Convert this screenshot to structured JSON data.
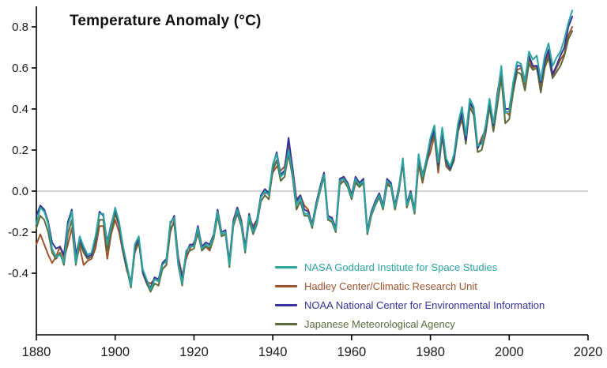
{
  "chart_data": {
    "type": "line",
    "title": "Temperature Anomaly (°C)",
    "xlabel": "",
    "ylabel": "",
    "xlim": [
      1880,
      2020
    ],
    "ylim": [
      -0.7,
      0.9
    ],
    "x_ticks": [
      1880,
      1900,
      1920,
      1940,
      1960,
      1980,
      2000,
      2020
    ],
    "y_ticks": [
      0.8,
      0.6,
      0.4,
      0.2,
      0.0,
      -0.2,
      -0.4
    ],
    "grid": false,
    "axis_color": "#000000",
    "zero_line": {
      "value": 0.0,
      "color": "#b8b8b8"
    },
    "legend_position": "inside-lower-right",
    "x": {
      "start": 1880,
      "step": 1,
      "end": 2016
    },
    "series": [
      {
        "id": "nasa-giss",
        "name": "NASA Goddard Institute for Space Studies",
        "color": "#2aa5a0",
        "values": [
          -0.16,
          -0.08,
          -0.1,
          -0.16,
          -0.28,
          -0.32,
          -0.31,
          -0.35,
          -0.17,
          -0.1,
          -0.35,
          -0.22,
          -0.27,
          -0.31,
          -0.3,
          -0.22,
          -0.11,
          -0.11,
          -0.26,
          -0.17,
          -0.08,
          -0.15,
          -0.27,
          -0.36,
          -0.46,
          -0.26,
          -0.22,
          -0.38,
          -0.43,
          -0.48,
          -0.43,
          -0.44,
          -0.36,
          -0.34,
          -0.15,
          -0.13,
          -0.35,
          -0.45,
          -0.29,
          -0.27,
          -0.27,
          -0.18,
          -0.28,
          -0.26,
          -0.27,
          -0.22,
          -0.1,
          -0.21,
          -0.2,
          -0.36,
          -0.16,
          -0.09,
          -0.16,
          -0.29,
          -0.12,
          -0.2,
          -0.15,
          -0.03,
          0.0,
          -0.02,
          0.13,
          0.18,
          0.07,
          0.09,
          0.2,
          0.09,
          -0.07,
          -0.03,
          -0.11,
          -0.11,
          -0.17,
          -0.07,
          0.01,
          0.08,
          -0.13,
          -0.14,
          -0.19,
          0.05,
          0.06,
          0.03,
          -0.03,
          0.06,
          0.03,
          0.05,
          -0.2,
          -0.11,
          -0.06,
          -0.02,
          -0.08,
          0.05,
          0.03,
          -0.08,
          0.01,
          0.16,
          -0.07,
          -0.01,
          -0.1,
          0.18,
          0.07,
          0.16,
          0.26,
          0.32,
          0.14,
          0.31,
          0.16,
          0.12,
          0.18,
          0.33,
          0.41,
          0.27,
          0.45,
          0.41,
          0.22,
          0.23,
          0.32,
          0.45,
          0.33,
          0.46,
          0.61,
          0.38,
          0.39,
          0.53,
          0.63,
          0.62,
          0.53,
          0.68,
          0.64,
          0.66,
          0.54,
          0.66,
          0.72,
          0.61,
          0.65,
          0.68,
          0.74,
          0.82,
          0.88
        ]
      },
      {
        "id": "hadley-cru",
        "name": "Hadley Center/Climatic Research Unit",
        "color": "#a0522d",
        "values": [
          -0.26,
          -0.21,
          -0.26,
          -0.31,
          -0.35,
          -0.32,
          -0.27,
          -0.33,
          -0.26,
          -0.18,
          -0.35,
          -0.27,
          -0.36,
          -0.34,
          -0.33,
          -0.28,
          -0.17,
          -0.17,
          -0.33,
          -0.21,
          -0.14,
          -0.2,
          -0.3,
          -0.39,
          -0.44,
          -0.3,
          -0.25,
          -0.39,
          -0.44,
          -0.45,
          -0.43,
          -0.44,
          -0.38,
          -0.36,
          -0.2,
          -0.14,
          -0.32,
          -0.41,
          -0.33,
          -0.28,
          -0.25,
          -0.21,
          -0.28,
          -0.27,
          -0.29,
          -0.23,
          -0.11,
          -0.22,
          -0.21,
          -0.34,
          -0.14,
          -0.08,
          -0.14,
          -0.27,
          -0.13,
          -0.17,
          -0.14,
          -0.02,
          -0.01,
          -0.01,
          0.09,
          0.12,
          0.1,
          0.12,
          0.23,
          0.12,
          -0.04,
          -0.02,
          -0.07,
          -0.09,
          -0.17,
          -0.06,
          0.02,
          0.09,
          -0.12,
          -0.13,
          -0.19,
          0.04,
          0.07,
          0.03,
          -0.02,
          0.05,
          0.02,
          0.06,
          -0.21,
          -0.12,
          -0.05,
          -0.02,
          -0.07,
          0.04,
          0.02,
          -0.09,
          0.0,
          0.14,
          -0.08,
          -0.02,
          -0.11,
          0.13,
          0.04,
          0.14,
          0.19,
          0.27,
          0.09,
          0.27,
          0.12,
          0.1,
          0.16,
          0.29,
          0.35,
          0.24,
          0.43,
          0.39,
          0.21,
          0.26,
          0.3,
          0.43,
          0.32,
          0.48,
          0.58,
          0.39,
          0.37,
          0.49,
          0.59,
          0.6,
          0.52,
          0.64,
          0.6,
          0.61,
          0.5,
          0.62,
          0.67,
          0.56,
          0.6,
          0.64,
          0.67,
          0.76,
          0.8
        ]
      },
      {
        "id": "noaa-ncei",
        "name": "NOAA National Center for Environmental Information",
        "color": "#333399",
        "values": [
          -0.12,
          -0.07,
          -0.09,
          -0.15,
          -0.25,
          -0.28,
          -0.27,
          -0.31,
          -0.15,
          -0.09,
          -0.31,
          -0.23,
          -0.28,
          -0.32,
          -0.31,
          -0.23,
          -0.1,
          -0.12,
          -0.25,
          -0.16,
          -0.09,
          -0.16,
          -0.28,
          -0.37,
          -0.45,
          -0.27,
          -0.23,
          -0.39,
          -0.44,
          -0.47,
          -0.42,
          -0.43,
          -0.35,
          -0.33,
          -0.16,
          -0.12,
          -0.33,
          -0.43,
          -0.3,
          -0.26,
          -0.26,
          -0.17,
          -0.27,
          -0.25,
          -0.26,
          -0.21,
          -0.09,
          -0.2,
          -0.19,
          -0.35,
          -0.15,
          -0.08,
          -0.15,
          -0.28,
          -0.11,
          -0.19,
          -0.14,
          -0.02,
          0.01,
          -0.01,
          0.12,
          0.19,
          0.08,
          0.1,
          0.26,
          0.11,
          -0.05,
          -0.02,
          -0.09,
          -0.1,
          -0.16,
          -0.06,
          0.02,
          0.09,
          -0.12,
          -0.13,
          -0.18,
          0.06,
          0.07,
          0.04,
          -0.02,
          0.07,
          0.04,
          0.06,
          -0.19,
          -0.1,
          -0.05,
          -0.01,
          -0.07,
          0.06,
          0.04,
          -0.07,
          0.02,
          0.15,
          -0.06,
          0.0,
          -0.09,
          0.17,
          0.08,
          0.15,
          0.24,
          0.3,
          0.13,
          0.29,
          0.15,
          0.11,
          0.17,
          0.31,
          0.38,
          0.25,
          0.43,
          0.4,
          0.21,
          0.24,
          0.31,
          0.44,
          0.32,
          0.47,
          0.6,
          0.4,
          0.4,
          0.52,
          0.61,
          0.61,
          0.54,
          0.66,
          0.61,
          0.61,
          0.53,
          0.63,
          0.69,
          0.57,
          0.61,
          0.66,
          0.7,
          0.8,
          0.85
        ]
      },
      {
        "id": "jma",
        "name": "Japanese Meteorological Agency",
        "color": "#596a3b",
        "values": [
          -0.18,
          -0.12,
          -0.14,
          -0.2,
          -0.3,
          -0.33,
          -0.3,
          -0.36,
          -0.21,
          -0.14,
          -0.36,
          -0.25,
          -0.3,
          -0.33,
          -0.32,
          -0.25,
          -0.14,
          -0.14,
          -0.29,
          -0.2,
          -0.11,
          -0.17,
          -0.29,
          -0.38,
          -0.47,
          -0.29,
          -0.24,
          -0.4,
          -0.45,
          -0.49,
          -0.45,
          -0.46,
          -0.38,
          -0.36,
          -0.18,
          -0.16,
          -0.36,
          -0.46,
          -0.31,
          -0.29,
          -0.28,
          -0.2,
          -0.29,
          -0.27,
          -0.28,
          -0.23,
          -0.12,
          -0.22,
          -0.21,
          -0.37,
          -0.17,
          -0.11,
          -0.17,
          -0.3,
          -0.14,
          -0.21,
          -0.16,
          -0.05,
          -0.02,
          -0.04,
          0.1,
          0.15,
          0.05,
          0.07,
          0.18,
          0.07,
          -0.09,
          -0.05,
          -0.12,
          -0.12,
          -0.18,
          -0.08,
          0.0,
          0.07,
          -0.14,
          -0.15,
          -0.2,
          0.03,
          0.05,
          0.02,
          -0.04,
          0.04,
          0.02,
          0.04,
          -0.21,
          -0.12,
          -0.07,
          -0.03,
          -0.09,
          0.03,
          0.02,
          -0.09,
          0.0,
          0.14,
          -0.08,
          -0.02,
          -0.11,
          0.15,
          0.05,
          0.13,
          0.23,
          0.28,
          0.11,
          0.27,
          0.13,
          0.1,
          0.15,
          0.29,
          0.36,
          0.23,
          0.41,
          0.37,
          0.19,
          0.2,
          0.28,
          0.41,
          0.29,
          0.42,
          0.55,
          0.33,
          0.35,
          0.48,
          0.58,
          0.57,
          0.49,
          0.62,
          0.59,
          0.6,
          0.48,
          0.6,
          0.65,
          0.55,
          0.58,
          0.61,
          0.66,
          0.74,
          0.78
        ]
      }
    ]
  }
}
